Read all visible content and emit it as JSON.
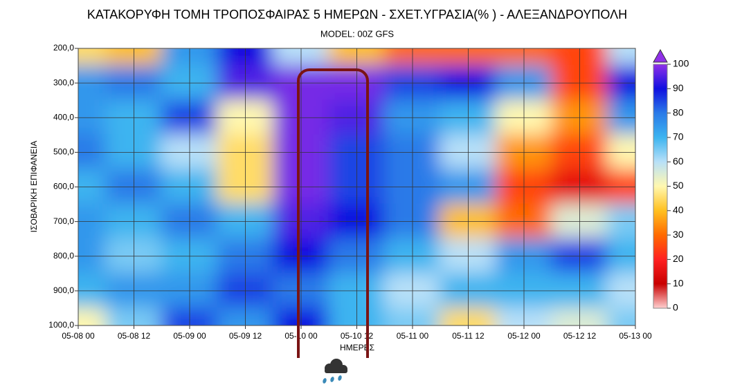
{
  "chart_data": {
    "type": "heatmap",
    "title": "ΚΑΤΑΚΟΡΥΦΗ ΤΟΜΗ ΤΡΟΠΟΣΦΑΙΡΑΣ 5 ΗΜΕΡΩΝ - ΣΧΕΤ.ΥΓΡΑΣΙΑ(% ) - ΑΛΕΞΑΝΔΡΟΥΠΟΛΗ",
    "subtitle": "MODEL: 00Z GFS",
    "x_label": "ΗΜΕΡΕΣ",
    "y_label": "ΙΣΟΒΑΡΙΚΗ ΕΠΙΦΑΝΕΙΑ",
    "x": [
      "05-08 00",
      "05-08 12",
      "05-09 00",
      "05-09 12",
      "05-10 00",
      "05-10 12",
      "05-11 00",
      "05-11 12",
      "05-12 00",
      "05-12 12",
      "05-13 00"
    ],
    "y": [
      200,
      300,
      400,
      500,
      600,
      700,
      800,
      900,
      1000
    ],
    "z": [
      [
        45,
        40,
        75,
        90,
        60,
        40,
        30,
        30,
        30,
        25,
        60
      ],
      [
        75,
        80,
        70,
        95,
        98,
        98,
        85,
        90,
        75,
        25,
        90
      ],
      [
        75,
        70,
        85,
        50,
        98,
        95,
        75,
        70,
        50,
        35,
        75
      ],
      [
        80,
        70,
        60,
        45,
        98,
        85,
        80,
        60,
        35,
        25,
        50
      ],
      [
        70,
        80,
        70,
        45,
        98,
        85,
        80,
        75,
        25,
        15,
        25
      ],
      [
        75,
        70,
        80,
        70,
        95,
        90,
        80,
        40,
        30,
        55,
        65
      ],
      [
        75,
        65,
        70,
        80,
        90,
        80,
        70,
        60,
        75,
        85,
        70
      ],
      [
        70,
        75,
        75,
        85,
        80,
        70,
        60,
        70,
        70,
        70,
        60
      ],
      [
        50,
        65,
        85,
        75,
        90,
        70,
        65,
        45,
        60,
        55,
        65
      ]
    ],
    "ylim": [
      1000,
      200
    ],
    "yticks": [
      {
        "value": 200,
        "label": "200,0"
      },
      {
        "value": 300,
        "label": "300,0"
      },
      {
        "value": 400,
        "label": "400,0"
      },
      {
        "value": 500,
        "label": "500,0"
      },
      {
        "value": 600,
        "label": "600,0"
      },
      {
        "value": 700,
        "label": "700,0"
      },
      {
        "value": 800,
        "label": "800,0"
      },
      {
        "value": 900,
        "label": "900,0"
      },
      {
        "value": 1000,
        "label": "1000,0"
      }
    ],
    "grid": true,
    "clim": [
      0,
      100
    ],
    "cticks": [
      0,
      10,
      20,
      30,
      40,
      50,
      60,
      70,
      80,
      90,
      100
    ],
    "colorscale": [
      "#ffd0d0",
      "#c80000",
      "#ff2020",
      "#ff6a00",
      "#ffc020",
      "#fff8b0",
      "#b8e0f8",
      "#3cb4f0",
      "#2a7ae8",
      "#1010e0",
      "#9030e8"
    ]
  }
}
